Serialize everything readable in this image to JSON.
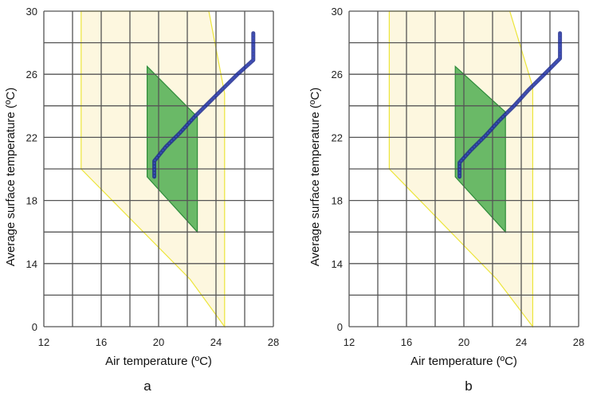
{
  "chart_data": [
    {
      "type": "area",
      "panel_label": "a",
      "xlabel": "Air temperature (ºC)",
      "ylabel": "Average surface temperature (ºC)",
      "xlim": [
        12,
        28
      ],
      "ylim_scale": "piecewise: data 0 at the axis origin, 14 to 30 linear",
      "x_ticks": [
        "12",
        "16",
        "20",
        "24",
        "28"
      ],
      "y_ticks": [
        "0",
        "14",
        "18",
        "22",
        "26",
        "30"
      ],
      "grid": true,
      "grid_x_step": 2,
      "grid_y_step": 2,
      "colors": {
        "comfort_zone_fill": "#fdf6dc",
        "comfort_zone_edge": "#ece53a",
        "zone_fill": "#45a948",
        "zone_edge": "#2e8b3a",
        "trajectory": "#1f2b8f",
        "grid": "#555555"
      },
      "series": [
        {
          "name": "comfort zone (yellow polygon)",
          "points": [
            [
              14.6,
              20
            ],
            [
              14.6,
              30
            ],
            [
              23.5,
              30
            ],
            [
              24.6,
              24.8
            ],
            [
              24.6,
              0
            ],
            [
              22.2,
              13
            ]
          ]
        },
        {
          "name": "green zone polygon",
          "points": [
            [
              19.2,
              26.5
            ],
            [
              19.2,
              19.5
            ],
            [
              22.7,
              16
            ],
            [
              22.7,
              23.3
            ]
          ]
        },
        {
          "name": "surface temperature trajectory",
          "points": [
            [
              19.7,
              19.5
            ],
            [
              19.7,
              20.5
            ],
            [
              20.5,
              21.4
            ],
            [
              21.5,
              22.3
            ],
            [
              22.5,
              23.3
            ],
            [
              23.5,
              24.2
            ],
            [
              24.5,
              25.1
            ],
            [
              25.5,
              26.0
            ],
            [
              26.6,
              26.9
            ],
            [
              26.6,
              28.6
            ]
          ]
        }
      ]
    },
    {
      "type": "area",
      "panel_label": "b",
      "xlabel": "Air temperature (ºC)",
      "ylabel": "Average surface temperature (ºC)",
      "xlim": [
        12,
        28
      ],
      "ylim_scale": "piecewise: data 0 at the axis origin, 14 to 30 linear",
      "x_ticks": [
        "12",
        "16",
        "20",
        "24",
        "28"
      ],
      "y_ticks": [
        "0",
        "14",
        "18",
        "22",
        "26",
        "30"
      ],
      "grid": true,
      "grid_x_step": 2,
      "grid_y_step": 2,
      "colors": {
        "comfort_zone_fill": "#fdf6dc",
        "comfort_zone_edge": "#ece53a",
        "zone_fill": "#45a948",
        "zone_edge": "#2e8b3a",
        "trajectory": "#1f2b8f",
        "grid": "#555555"
      },
      "series": [
        {
          "name": "comfort zone (yellow polygon)",
          "points": [
            [
              14.8,
              20
            ],
            [
              14.8,
              30
            ],
            [
              23.2,
              30
            ],
            [
              24.8,
              25.2
            ],
            [
              24.8,
              0
            ],
            [
              22.3,
              13
            ]
          ]
        },
        {
          "name": "green zone polygon",
          "points": [
            [
              19.4,
              26.5
            ],
            [
              19.4,
              19.5
            ],
            [
              22.9,
              16
            ],
            [
              22.9,
              23.6
            ]
          ]
        },
        {
          "name": "surface temperature trajectory",
          "points": [
            [
              19.7,
              19.5
            ],
            [
              19.7,
              20.4
            ],
            [
              20.5,
              21.2
            ],
            [
              21.5,
              22.1
            ],
            [
              22.5,
              23.1
            ],
            [
              23.5,
              24.0
            ],
            [
              24.5,
              25.0
            ],
            [
              25.5,
              25.9
            ],
            [
              26.7,
              27.0
            ],
            [
              26.7,
              28.6
            ]
          ]
        }
      ]
    }
  ]
}
